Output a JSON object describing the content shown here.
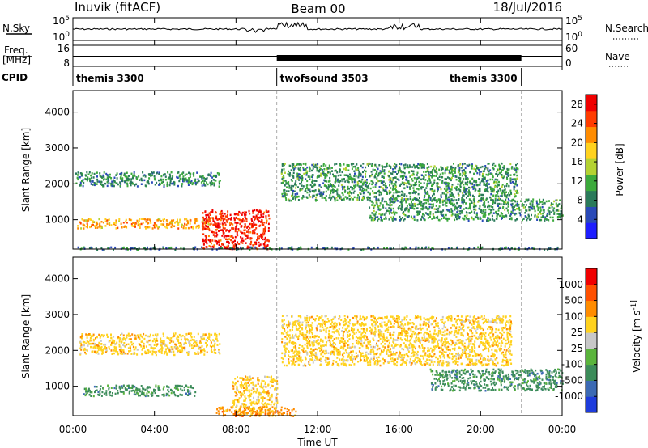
{
  "header": {
    "station": "Inuvik (fitACF)",
    "beam": "Beam 00",
    "date": "18/Jul/2016"
  },
  "chart_data": [
    {
      "type": "line",
      "title": "",
      "ylabel_left": "N.Sky",
      "ylabel_right": "N.Search",
      "left_ticks": [
        "10^5",
        "10^0"
      ],
      "right_ticks": [
        "10^5",
        "10^0"
      ],
      "right_legend_style": "dotted",
      "xlim": [
        0,
        24
      ],
      "nsky_level_note": "near 10^2 throughout with spikes around 10:00 and 16:00"
    },
    {
      "type": "line",
      "ylabel_left_top": "Freq.",
      "ylabel_left_bottom": "[MHz]",
      "ylabel_right": "Nave",
      "left_ticks": [
        16,
        8
      ],
      "right_ticks": [
        60,
        0
      ],
      "freq_mhz": 11,
      "nave_shaded_span_ut": [
        10.0,
        22.0
      ],
      "xlim": [
        0,
        24
      ]
    },
    {
      "type": "table",
      "label": "CPID",
      "segments": [
        {
          "name": "themis 3300",
          "start_ut": 0.0,
          "end_ut": 10.0
        },
        {
          "name": "twofsound 3503",
          "start_ut": 10.0,
          "end_ut": 22.0
        },
        {
          "name": "themis 3300",
          "start_ut": 22.0,
          "end_ut": 24.0
        }
      ]
    },
    {
      "type": "heatmap",
      "ylabel": "Slant Range [km]",
      "yticks": [
        1000,
        2000,
        3000,
        4000
      ],
      "ylim": [
        180,
        4600
      ],
      "xlim": [
        0,
        24
      ],
      "colorbar": {
        "label": "Power [dB]",
        "ticks": [
          4,
          8,
          12,
          16,
          20,
          24,
          28
        ],
        "range": [
          0,
          30
        ],
        "colors": [
          "#1e1eff",
          "#2a4ab8",
          "#2a7a5a",
          "#3caa3c",
          "#b4d232",
          "#ffd21e",
          "#ff8c00",
          "#ff3c00",
          "#f00000"
        ]
      },
      "bands": [
        {
          "t0": 0.1,
          "t1": 7.2,
          "r0": 1950,
          "r1": 2350,
          "value": 9
        },
        {
          "t0": 0.2,
          "t1": 6.8,
          "r0": 780,
          "r1": 1050,
          "value": 20
        },
        {
          "t0": 6.3,
          "t1": 9.6,
          "r0": 200,
          "r1": 1300,
          "value": 27
        },
        {
          "t0": 10.2,
          "t1": 21.8,
          "r0": 1550,
          "r1": 2600,
          "value": 10
        },
        {
          "t0": 14.5,
          "t1": 24.0,
          "r0": 1000,
          "r1": 1600,
          "value": 10
        },
        {
          "t0": 0.0,
          "t1": 24.0,
          "r0": 190,
          "r1": 260,
          "value": 8
        }
      ]
    },
    {
      "type": "heatmap",
      "ylabel": "Slant Range [km]",
      "yticks": [
        1000,
        2000,
        3000,
        4000
      ],
      "ylim": [
        180,
        4600
      ],
      "xlim": [
        0,
        24
      ],
      "xticks": [
        "00:00",
        "04:00",
        "08:00",
        "12:00",
        "16:00",
        "20:00",
        "00:00"
      ],
      "xlabel": "Time UT",
      "colorbar": {
        "label": "Velocity [m s^-1]",
        "ticks": [
          "1000",
          "500",
          "100",
          "25",
          "-25",
          "-100",
          "-500",
          "-1000"
        ],
        "colors": [
          "#1e3cdc",
          "#3c6ab4",
          "#3c8c5a",
          "#5ab43c",
          "#c8c8c8",
          "#ffd21e",
          "#ff8c00",
          "#ff5000",
          "#f00000"
        ]
      },
      "bands": [
        {
          "t0": 0.3,
          "t1": 7.2,
          "r0": 1900,
          "r1": 2500,
          "value": "25"
        },
        {
          "t0": 0.5,
          "t1": 6.0,
          "r0": 750,
          "r1": 1050,
          "value": "-500"
        },
        {
          "t0": 7.8,
          "t1": 10.0,
          "r0": 200,
          "r1": 1300,
          "value": "25"
        },
        {
          "t0": 10.2,
          "t1": 21.5,
          "r0": 1600,
          "r1": 3000,
          "value": "25"
        },
        {
          "t0": 17.5,
          "t1": 24.0,
          "r0": 900,
          "r1": 1500,
          "value": "-500"
        },
        {
          "t0": 7.0,
          "t1": 11.0,
          "r0": 190,
          "r1": 450,
          "value": "100"
        }
      ]
    }
  ]
}
